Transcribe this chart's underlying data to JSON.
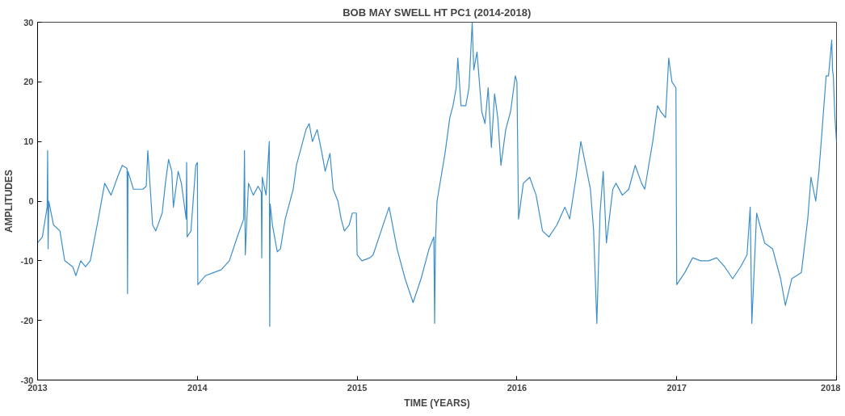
{
  "chart_data": {
    "type": "line",
    "title": "BOB MAY SWELL HT PC1 (2014-2018)",
    "xlabel": "TIME (YEARS)",
    "ylabel": "AMPLITUDES",
    "xlim": [
      2013,
      2018
    ],
    "ylim": [
      -30,
      30
    ],
    "xticks": [
      2013,
      2014,
      2015,
      2016,
      2017,
      2018
    ],
    "yticks": [
      -30,
      -20,
      -10,
      0,
      10,
      20,
      30
    ],
    "grid": false,
    "marker": "none",
    "line_style": "solid",
    "series": [
      {
        "color": "#3d8fcc",
        "x": [
          2013.0,
          2013.03,
          2013.06,
          2013.063,
          2013.066,
          2013.07,
          2013.1,
          2013.14,
          2013.17,
          2013.22,
          2013.24,
          2013.27,
          2013.3,
          2013.33,
          2013.38,
          2013.42,
          2013.46,
          2013.5,
          2013.53,
          2013.56,
          2013.563,
          2013.566,
          2013.6,
          2013.66,
          2013.68,
          2013.69,
          2013.72,
          2013.74,
          2013.78,
          2013.8,
          2013.82,
          2013.84,
          2013.85,
          2013.88,
          2013.9,
          2013.93,
          2013.933,
          2013.936,
          2013.96,
          2013.99,
          2014.0,
          2014.003,
          2014.05,
          2014.1,
          2014.15,
          2014.2,
          2014.25,
          2014.29,
          2014.295,
          2014.3,
          2014.32,
          2014.35,
          2014.38,
          2014.4,
          2014.403,
          2014.406,
          2014.43,
          2014.45,
          2014.453,
          2014.456,
          2014.47,
          2014.5,
          2014.52,
          2014.55,
          2014.6,
          2014.62,
          2014.65,
          2014.68,
          2014.7,
          2014.72,
          2014.75,
          2014.78,
          2014.8,
          2014.83,
          2014.85,
          2014.88,
          2014.9,
          2014.92,
          2014.95,
          2014.97,
          2014.995,
          2015.0,
          2015.03,
          2015.08,
          2015.1,
          2015.15,
          2015.2,
          2015.25,
          2015.3,
          2015.35,
          2015.4,
          2015.45,
          2015.48,
          2015.485,
          2015.49,
          2015.5,
          2015.55,
          2015.58,
          2015.6,
          2015.62,
          2015.63,
          2015.65,
          2015.68,
          2015.7,
          2015.72,
          2015.73,
          2015.75,
          2015.78,
          2015.8,
          2015.82,
          2015.84,
          2015.86,
          2015.88,
          2015.9,
          2015.93,
          2015.96,
          2015.99,
          2016.0,
          2016.01,
          2016.04,
          2016.08,
          2016.12,
          2016.16,
          2016.2,
          2016.25,
          2016.3,
          2016.33,
          2016.37,
          2016.4,
          2016.43,
          2016.46,
          2016.48,
          2016.5,
          2016.52,
          2016.54,
          2016.56,
          2016.6,
          2016.62,
          2016.66,
          2016.7,
          2016.74,
          2016.78,
          2016.8,
          2016.85,
          2016.88,
          2016.9,
          2016.93,
          2016.95,
          2016.97,
          2016.995,
          2017.0,
          2017.05,
          2017.1,
          2017.15,
          2017.2,
          2017.25,
          2017.3,
          2017.35,
          2017.4,
          2017.44,
          2017.46,
          2017.47,
          2017.5,
          2017.55,
          2017.6,
          2017.65,
          2017.68,
          2017.72,
          2017.78,
          2017.82,
          2017.84,
          2017.87,
          2017.89,
          2017.91,
          2017.935,
          2017.95,
          2017.97,
          2017.975,
          2017.98,
          2017.99,
          2017.995,
          2018.0
        ],
        "values": [
          -7,
          -6,
          -1,
          8.5,
          -8,
          0,
          -4,
          -5,
          -10,
          -11,
          -12.5,
          -10,
          -11,
          -10,
          -3,
          3,
          1,
          4,
          6,
          5.5,
          -15.5,
          5,
          2,
          2,
          2.5,
          8.5,
          -4,
          -5,
          -2,
          3,
          7,
          5,
          -1,
          5,
          3,
          -3,
          6.5,
          -6,
          -5,
          6,
          6.5,
          -14,
          -12.5,
          -12,
          -11.5,
          -10,
          -6,
          -3,
          8.5,
          -9,
          3,
          1,
          2.5,
          1.5,
          -9.5,
          4,
          1,
          10,
          -21,
          -0.5,
          -4,
          -8.5,
          -8,
          -3,
          2,
          6,
          9,
          12,
          13,
          10,
          12,
          8,
          5,
          8,
          2,
          0,
          -3,
          -5,
          -4,
          -2,
          -2,
          -9,
          -10,
          -9.5,
          -9,
          -5,
          -1,
          -8,
          -13,
          -17,
          -13,
          -8,
          -6,
          -20.5,
          -7,
          0,
          8,
          14,
          16,
          19,
          24,
          16,
          16,
          19,
          30,
          22,
          25,
          15,
          13,
          19,
          9,
          18,
          14,
          6,
          12,
          15,
          21,
          20,
          -3,
          3,
          4,
          1,
          -5,
          -6,
          -4,
          -1,
          -3,
          4,
          10,
          6,
          2,
          -5,
          -20.5,
          -2,
          5,
          -7,
          2,
          3,
          1,
          2,
          6,
          3,
          2,
          10,
          16,
          15,
          14,
          24,
          20,
          19,
          -14,
          -12,
          -9.5,
          -10,
          -10,
          -9.5,
          -11,
          -13,
          -11,
          -9,
          -1,
          -20.5,
          -2,
          -7,
          -8,
          -13,
          -17.5,
          -13,
          -12,
          -3,
          4,
          0,
          5,
          12,
          21,
          21,
          27,
          22,
          21,
          14,
          12,
          10
        ]
      }
    ]
  }
}
